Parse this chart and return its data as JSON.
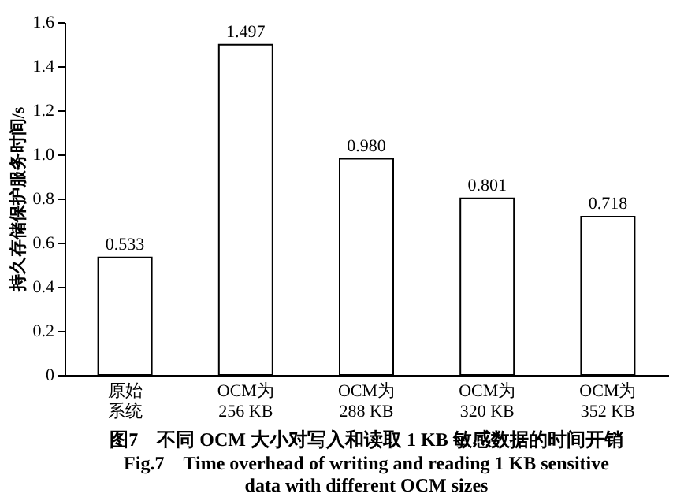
{
  "chart_data": {
    "type": "bar",
    "title": "图7　不同 OCM 大小对写入和读取 1 KB 敏感数据的时间开销",
    "subtitle": [
      "Fig.7　Time overhead of writing and reading 1 KB sensitive",
      "data with different OCM sizes"
    ],
    "ylabel": "持久存储保护服务时间/s",
    "categories": [
      "原始系统",
      "OCM为256 KB",
      "OCM为288 KB",
      "OCM为320 KB",
      "OCM为352 KB"
    ],
    "values": [
      0.533,
      1.497,
      0.98,
      0.801,
      0.718
    ],
    "value_labels": [
      "0.533",
      "1.497",
      "0.980",
      "0.801",
      "0.718"
    ],
    "color": "#ffffff",
    "ylim": [
      0,
      1.6
    ],
    "yticks": [
      0,
      0.2,
      0.4,
      0.6,
      0.8,
      {
        "value": 1.0,
        "label": "1.0"
      },
      1.2,
      1.4,
      1.6
    ],
    "grid": false
  }
}
